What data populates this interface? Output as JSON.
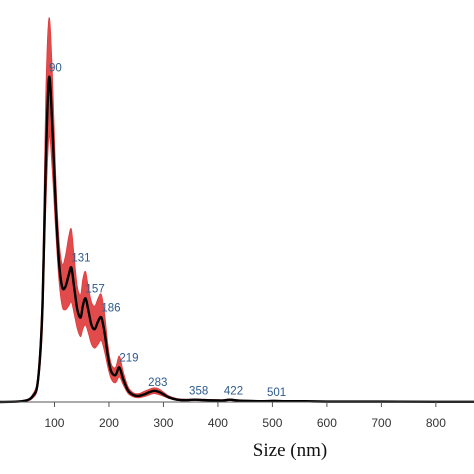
{
  "chart_data": {
    "type": "line",
    "title": "",
    "xlabel": "Size (nm)",
    "ylabel": "",
    "xlim": [
      0,
      870
    ],
    "ylim": [
      0,
      1.0
    ],
    "grid": false,
    "legend": "none",
    "xticks": [
      100,
      200,
      300,
      400,
      500,
      600,
      700,
      800
    ],
    "series": [
      {
        "role": "mean",
        "color": "#000000",
        "x": [
          0,
          40,
          60,
          70,
          78,
          84,
          90,
          96,
          102,
          108,
          114,
          120,
          126,
          131,
          136,
          142,
          148,
          152,
          157,
          162,
          168,
          174,
          180,
          186,
          192,
          198,
          204,
          212,
          219,
          226,
          235,
          245,
          255,
          265,
          275,
          283,
          292,
          300,
          310,
          325,
          340,
          358,
          375,
          400,
          410,
          422,
          435,
          450,
          480,
          501,
          520,
          560,
          600,
          700,
          800,
          870
        ],
        "y": [
          0,
          0.002,
          0.015,
          0.06,
          0.25,
          0.62,
          0.845,
          0.72,
          0.52,
          0.37,
          0.3,
          0.3,
          0.33,
          0.35,
          0.3,
          0.24,
          0.22,
          0.25,
          0.27,
          0.24,
          0.2,
          0.19,
          0.21,
          0.22,
          0.18,
          0.12,
          0.08,
          0.07,
          0.09,
          0.06,
          0.03,
          0.018,
          0.016,
          0.02,
          0.026,
          0.029,
          0.026,
          0.02,
          0.012,
          0.006,
          0.005,
          0.006,
          0.005,
          0.004,
          0.004,
          0.006,
          0.004,
          0.003,
          0.002,
          0.003,
          0.002,
          0.002,
          0.001,
          0.001,
          0.0005,
          0.0005
        ]
      },
      {
        "role": "error-band",
        "color": "#e03c3c",
        "x": [
          0,
          40,
          60,
          70,
          78,
          84,
          90,
          96,
          102,
          108,
          114,
          120,
          126,
          131,
          136,
          142,
          148,
          152,
          157,
          162,
          168,
          174,
          180,
          186,
          192,
          198,
          204,
          212,
          219,
          226,
          235,
          245,
          255,
          265,
          275,
          283,
          292,
          300,
          310,
          325,
          340,
          358,
          375,
          400,
          410,
          422,
          435,
          450,
          480,
          501,
          520,
          560,
          600,
          700,
          800,
          870
        ],
        "upper": [
          0,
          0.003,
          0.02,
          0.08,
          0.32,
          0.8,
          1.0,
          0.86,
          0.6,
          0.43,
          0.36,
          0.38,
          0.43,
          0.45,
          0.38,
          0.3,
          0.28,
          0.32,
          0.34,
          0.3,
          0.26,
          0.25,
          0.27,
          0.28,
          0.23,
          0.15,
          0.1,
          0.09,
          0.12,
          0.08,
          0.04,
          0.024,
          0.022,
          0.028,
          0.034,
          0.037,
          0.034,
          0.026,
          0.016,
          0.009,
          0.007,
          0.008,
          0.007,
          0.006,
          0.006,
          0.008,
          0.006,
          0.004,
          0.003,
          0.004,
          0.003,
          0.003,
          0.002,
          0.002,
          0.001,
          0.001
        ],
        "lower": [
          0,
          0.001,
          0.01,
          0.045,
          0.19,
          0.5,
          0.69,
          0.6,
          0.45,
          0.32,
          0.25,
          0.24,
          0.25,
          0.26,
          0.23,
          0.19,
          0.17,
          0.19,
          0.2,
          0.18,
          0.15,
          0.14,
          0.15,
          0.16,
          0.13,
          0.09,
          0.06,
          0.05,
          0.065,
          0.045,
          0.022,
          0.013,
          0.011,
          0.014,
          0.019,
          0.022,
          0.019,
          0.015,
          0.009,
          0.004,
          0.003,
          0.004,
          0.003,
          0.002,
          0.002,
          0.004,
          0.002,
          0.002,
          0.001,
          0.002,
          0.001,
          0.001,
          0.0005,
          0.0005,
          0,
          0
        ]
      }
    ],
    "peak_labels": [
      {
        "text": "90",
        "x": 90,
        "y": 0.845
      },
      {
        "text": "131",
        "x": 131,
        "y": 0.35
      },
      {
        "text": "157",
        "x": 157,
        "y": 0.27
      },
      {
        "text": "186",
        "x": 186,
        "y": 0.22
      },
      {
        "text": "219",
        "x": 219,
        "y": 0.09
      },
      {
        "text": "283",
        "x": 283,
        "y": 0.029
      },
      {
        "text": "358",
        "x": 358,
        "y": 0.006
      },
      {
        "text": "422",
        "x": 422,
        "y": 0.006
      },
      {
        "text": "501",
        "x": 501,
        "y": 0.003
      }
    ],
    "label_color": "#2c5a8c"
  }
}
